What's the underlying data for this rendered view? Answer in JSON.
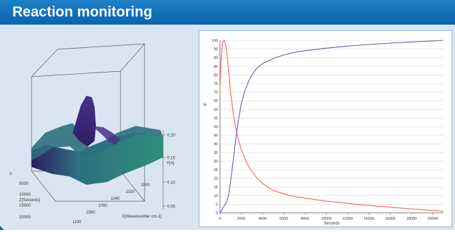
{
  "banner": {
    "title": "Reaction monitoring"
  },
  "colors": {
    "banner": "#0a64ad",
    "panel": "#d9e6f2",
    "series_a": "#ff5a5a",
    "series_b": "#5a5ac8"
  },
  "chart_data": [
    {
      "type": "surface3d",
      "xlabel": "X[Wavenumber cm-1]",
      "ylabel": "Y[A]",
      "zlabel": "Z[Seconds]",
      "x_ticks": [
        "1100",
        "1080",
        "1060",
        "1040",
        "1020",
        "1000"
      ],
      "y_ticks": [
        "0.05",
        "0.10",
        "0.15",
        "0.20"
      ],
      "z_ticks": [
        "0",
        "5000",
        "10000",
        "15000",
        "20000"
      ],
      "colormap": [
        "#2b1f5e",
        "#4a2f8f",
        "#2e6f80",
        "#2f8f7a"
      ]
    },
    {
      "type": "line",
      "xlabel": "Seconds",
      "ylabel": "%",
      "xlim": [
        0,
        21000
      ],
      "ylim": [
        0,
        100
      ],
      "x_ticks": [
        0,
        2000,
        4000,
        6000,
        8000,
        10000,
        12000,
        14000,
        16000,
        18000,
        20000
      ],
      "y_ticks": [
        0,
        5,
        10,
        15,
        20,
        25,
        30,
        35,
        40,
        45,
        50,
        55,
        60,
        65,
        70,
        75,
        80,
        85,
        90,
        95,
        100
      ],
      "grid": true,
      "series": [
        {
          "color": "#ff5a5a",
          "x": [
            0,
            100,
            250,
            400,
            550,
            700,
            850,
            1000,
            1200,
            1400,
            1600,
            1800,
            2000,
            2300,
            2600,
            3000,
            3500,
            4000,
            5000,
            6000,
            7000,
            8000,
            10000,
            12000,
            14000,
            16000,
            18000,
            20000,
            21000
          ],
          "y": [
            72,
            88,
            99,
            100,
            97,
            90,
            80,
            70,
            60,
            52,
            46,
            41,
            37,
            32,
            28,
            24,
            20,
            17,
            13,
            11,
            9.5,
            8.5,
            6.8,
            5.5,
            4.3,
            3.3,
            2.3,
            1.3,
            1
          ]
        },
        {
          "color": "#5a5ac8",
          "x": [
            0,
            200,
            400,
            600,
            800,
            1000,
            1200,
            1400,
            1600,
            1800,
            2000,
            2300,
            2600,
            3000,
            3500,
            4000,
            5000,
            6000,
            7000,
            8000,
            10000,
            12000,
            14000,
            16000,
            18000,
            20000,
            21000
          ],
          "y": [
            0,
            2,
            4,
            6,
            10,
            18,
            28,
            38,
            48,
            56,
            63,
            70,
            75,
            80,
            84,
            86.5,
            89.5,
            91.5,
            93,
            94,
            95.5,
            96.7,
            97.6,
            98.4,
            99.1,
            99.7,
            100
          ]
        }
      ]
    }
  ]
}
